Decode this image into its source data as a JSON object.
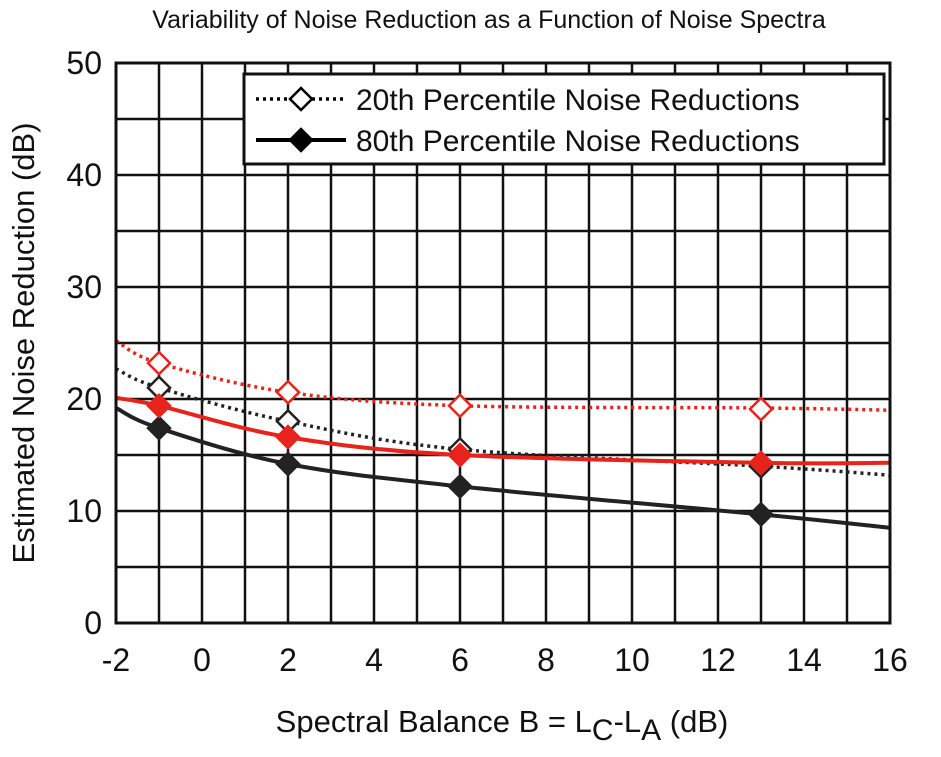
{
  "chart_data": {
    "type": "line",
    "title": "Variability of Noise Reduction as a Function of Noise Spectra",
    "xlabel": {
      "prefix": "Spectral Balance B = L",
      "sub1": "C",
      "mid": "-L",
      "sub2": "A",
      "suffix": " (dB)"
    },
    "ylabel": "Estimated Noise Reduction (dB)",
    "xlim": [
      -2,
      16
    ],
    "ylim": [
      0,
      50
    ],
    "xticks": [
      -2,
      0,
      2,
      4,
      6,
      8,
      10,
      12,
      14,
      16
    ],
    "yticks": [
      0,
      10,
      20,
      30,
      40,
      50
    ],
    "x_grid_minor": [
      -1,
      1,
      3,
      5,
      7,
      9,
      11,
      13,
      15
    ],
    "y_grid_minor": [
      5,
      15,
      25,
      35,
      45
    ],
    "grid": true,
    "legend_position": "top-right",
    "legend": [
      {
        "label": "20th Percentile Noise Reductions",
        "style": "dotted",
        "marker": "open-diamond",
        "color": "#000000"
      },
      {
        "label": "80th Percentile Noise Reductions",
        "style": "solid",
        "marker": "filled-diamond",
        "color": "#000000"
      }
    ],
    "series": [
      {
        "name": "20th Percentile (black)",
        "color": "#222222",
        "style": "dotted",
        "marker": "open-diamond",
        "curve_x": [
          -2,
          -1,
          2,
          6,
          13,
          16
        ],
        "curve_y": [
          22.7,
          21.0,
          18.0,
          15.5,
          14.0,
          13.2
        ],
        "marker_x": [
          -1,
          2,
          6,
          13
        ],
        "marker_y": [
          21.0,
          18.0,
          15.5,
          14.0
        ]
      },
      {
        "name": "20th Percentile (red)",
        "color": "#e8231c",
        "style": "dotted",
        "marker": "open-diamond",
        "curve_x": [
          -2,
          -1,
          2,
          6,
          13,
          16
        ],
        "curve_y": [
          25.2,
          23.2,
          20.6,
          19.4,
          19.2,
          19.0
        ],
        "marker_x": [
          -1,
          2,
          6,
          13
        ],
        "marker_y": [
          23.2,
          20.6,
          19.4,
          19.1
        ]
      },
      {
        "name": "80th Percentile (black)",
        "color": "#222222",
        "style": "solid",
        "marker": "filled-diamond",
        "curve_x": [
          -2,
          -1,
          2,
          6,
          13,
          16
        ],
        "curve_y": [
          19.2,
          17.4,
          14.2,
          12.2,
          9.7,
          8.5
        ],
        "marker_x": [
          -1,
          2,
          6,
          13
        ],
        "marker_y": [
          17.4,
          14.2,
          12.2,
          9.7
        ]
      },
      {
        "name": "80th Percentile (red)",
        "color": "#e8231c",
        "style": "solid",
        "marker": "filled-diamond",
        "curve_x": [
          -2,
          -1,
          2,
          6,
          13,
          16
        ],
        "curve_y": [
          20.1,
          19.4,
          16.6,
          15.0,
          14.3,
          14.3
        ],
        "marker_x": [
          -1,
          2,
          6,
          13
        ],
        "marker_y": [
          19.4,
          16.6,
          15.0,
          14.3
        ]
      }
    ]
  }
}
